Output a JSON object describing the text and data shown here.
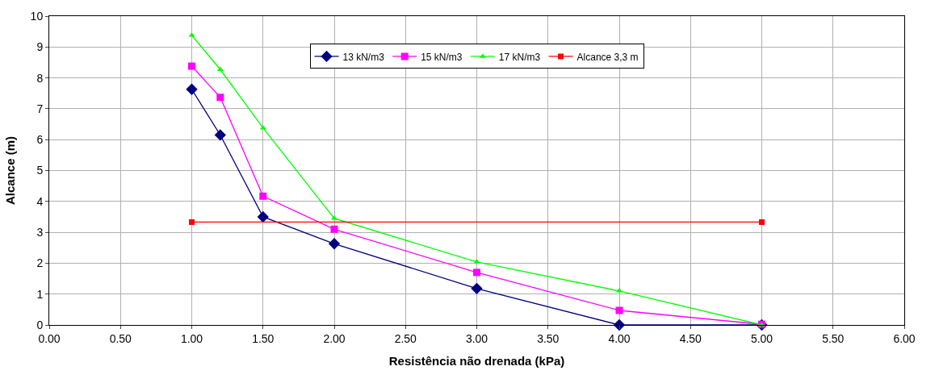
{
  "chart_data": {
    "type": "line",
    "xlabel": "Resistência não drenada (kPa)",
    "ylabel": "Alcance (m)",
    "x": [
      1.0,
      1.2,
      1.5,
      2.0,
      3.0,
      4.0,
      5.0
    ],
    "series": [
      {
        "name": "13 kN/m3",
        "color": "#000080",
        "marker": "diamond",
        "values": [
          7.63,
          6.15,
          3.5,
          2.63,
          1.18,
          0,
          0
        ]
      },
      {
        "name": "15 kN/m3",
        "color": "#ff00ff",
        "marker": "square",
        "values": [
          8.38,
          7.37,
          4.17,
          3.1,
          1.7,
          0.47,
          0.02
        ]
      },
      {
        "name": "17 kN/m3",
        "color": "#00ff00",
        "marker": "triangle",
        "values": [
          9.38,
          8.27,
          6.38,
          3.45,
          2.04,
          1.1,
          0
        ]
      },
      {
        "name": "Alcance 3,3 m",
        "color": "#ff0000",
        "marker": "square",
        "x": [
          1.0,
          5.0
        ],
        "values": [
          3.33,
          3.33
        ]
      }
    ],
    "xlim": [
      0,
      6
    ],
    "xticks": [
      {
        "value": 0,
        "label": "0.00"
      },
      {
        "value": 0.5,
        "label": "0.50"
      },
      {
        "value": 1,
        "label": "1.00"
      },
      {
        "value": 1.5,
        "label": "1.50"
      },
      {
        "value": 2,
        "label": "2.00"
      },
      {
        "value": 2.5,
        "label": "2.50"
      },
      {
        "value": 3,
        "label": "3.00"
      },
      {
        "value": 3.5,
        "label": "3.50"
      },
      {
        "value": 4,
        "label": "4.00"
      },
      {
        "value": 4.5,
        "label": "4.50"
      },
      {
        "value": 5,
        "label": "5.00"
      },
      {
        "value": 5.5,
        "label": "5.50"
      },
      {
        "value": 6,
        "label": "6.00"
      }
    ],
    "ylim": [
      0,
      10
    ],
    "yticks": [
      0,
      1,
      2,
      3,
      4,
      5,
      6,
      7,
      8,
      9,
      10
    ],
    "grid": true,
    "legend": "top"
  }
}
